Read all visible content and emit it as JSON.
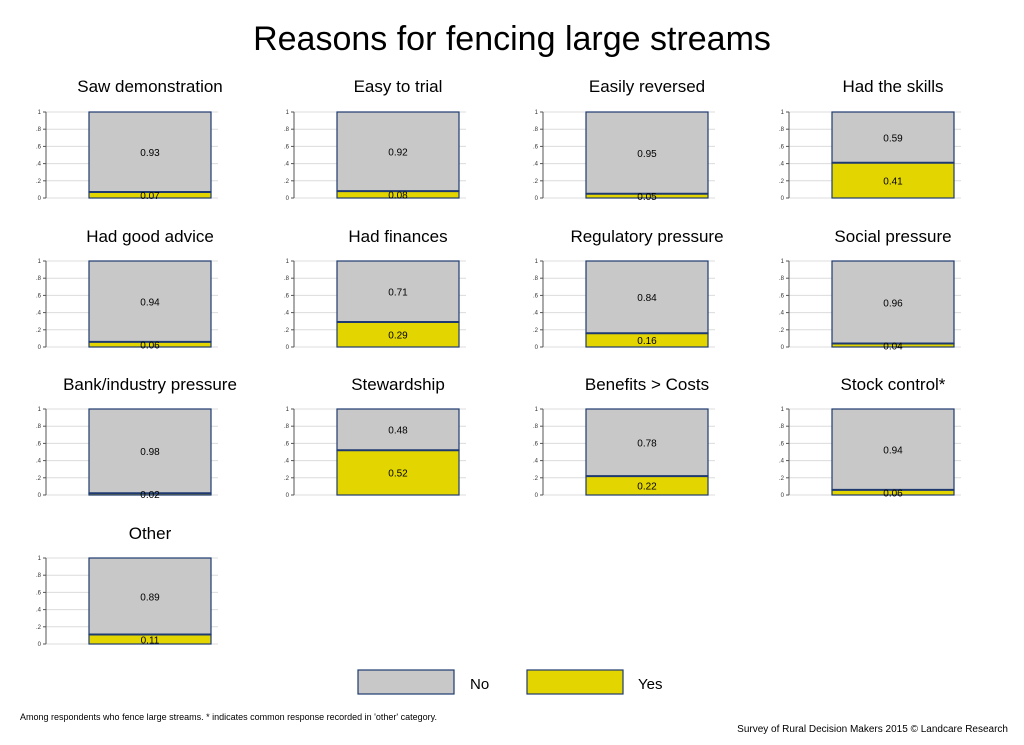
{
  "chart_data": {
    "type": "bar",
    "stacked": true,
    "title": "Reasons for fencing large streams",
    "ylim": [
      0,
      1
    ],
    "yticks": [
      "0",
      ".2",
      ".4",
      ".6",
      ".8",
      "1"
    ],
    "ytick_values": [
      0,
      0.2,
      0.4,
      0.6,
      0.8,
      1
    ],
    "grid": true,
    "legend_placement": "bottom",
    "legend": [
      {
        "key": "no",
        "label": "No",
        "color": "#c8c8c8"
      },
      {
        "key": "yes",
        "label": "Yes",
        "color": "#e3d500"
      }
    ],
    "panels": [
      {
        "title": "Saw demonstration",
        "no": 0.93,
        "yes": 0.07,
        "no_label": "0.93",
        "yes_label": "0.07"
      },
      {
        "title": "Easy to trial",
        "no": 0.92,
        "yes": 0.08,
        "no_label": "0.92",
        "yes_label": "0.08"
      },
      {
        "title": "Easily reversed",
        "no": 0.95,
        "yes": 0.05,
        "no_label": "0.95",
        "yes_label": "0.05"
      },
      {
        "title": "Had the skills",
        "no": 0.59,
        "yes": 0.41,
        "no_label": "0.59",
        "yes_label": "0.41"
      },
      {
        "title": "Had good advice",
        "no": 0.94,
        "yes": 0.06,
        "no_label": "0.94",
        "yes_label": "0.06"
      },
      {
        "title": "Had finances",
        "no": 0.71,
        "yes": 0.29,
        "no_label": "0.71",
        "yes_label": "0.29"
      },
      {
        "title": "Regulatory pressure",
        "no": 0.84,
        "yes": 0.16,
        "no_label": "0.84",
        "yes_label": "0.16"
      },
      {
        "title": "Social pressure",
        "no": 0.96,
        "yes": 0.04,
        "no_label": "0.96",
        "yes_label": "0.04"
      },
      {
        "title": "Bank/industry pressure",
        "no": 0.98,
        "yes": 0.02,
        "no_label": "0.98",
        "yes_label": "0.02"
      },
      {
        "title": "Stewardship",
        "no": 0.48,
        "yes": 0.52,
        "no_label": "0.48",
        "yes_label": "0.52"
      },
      {
        "title": "Benefits > Costs",
        "no": 0.78,
        "yes": 0.22,
        "no_label": "0.78",
        "yes_label": "0.22"
      },
      {
        "title": "Stock control*",
        "no": 0.94,
        "yes": 0.06,
        "no_label": "0.94",
        "yes_label": "0.06"
      },
      {
        "title": "Other",
        "no": 0.89,
        "yes": 0.11,
        "no_label": "0.89",
        "yes_label": "0.11"
      }
    ]
  },
  "footnote": "Among respondents who fence large streams. * indicates common response recorded in 'other' category.",
  "credit": "Survey of Rural Decision Makers 2015 © Landcare Research"
}
